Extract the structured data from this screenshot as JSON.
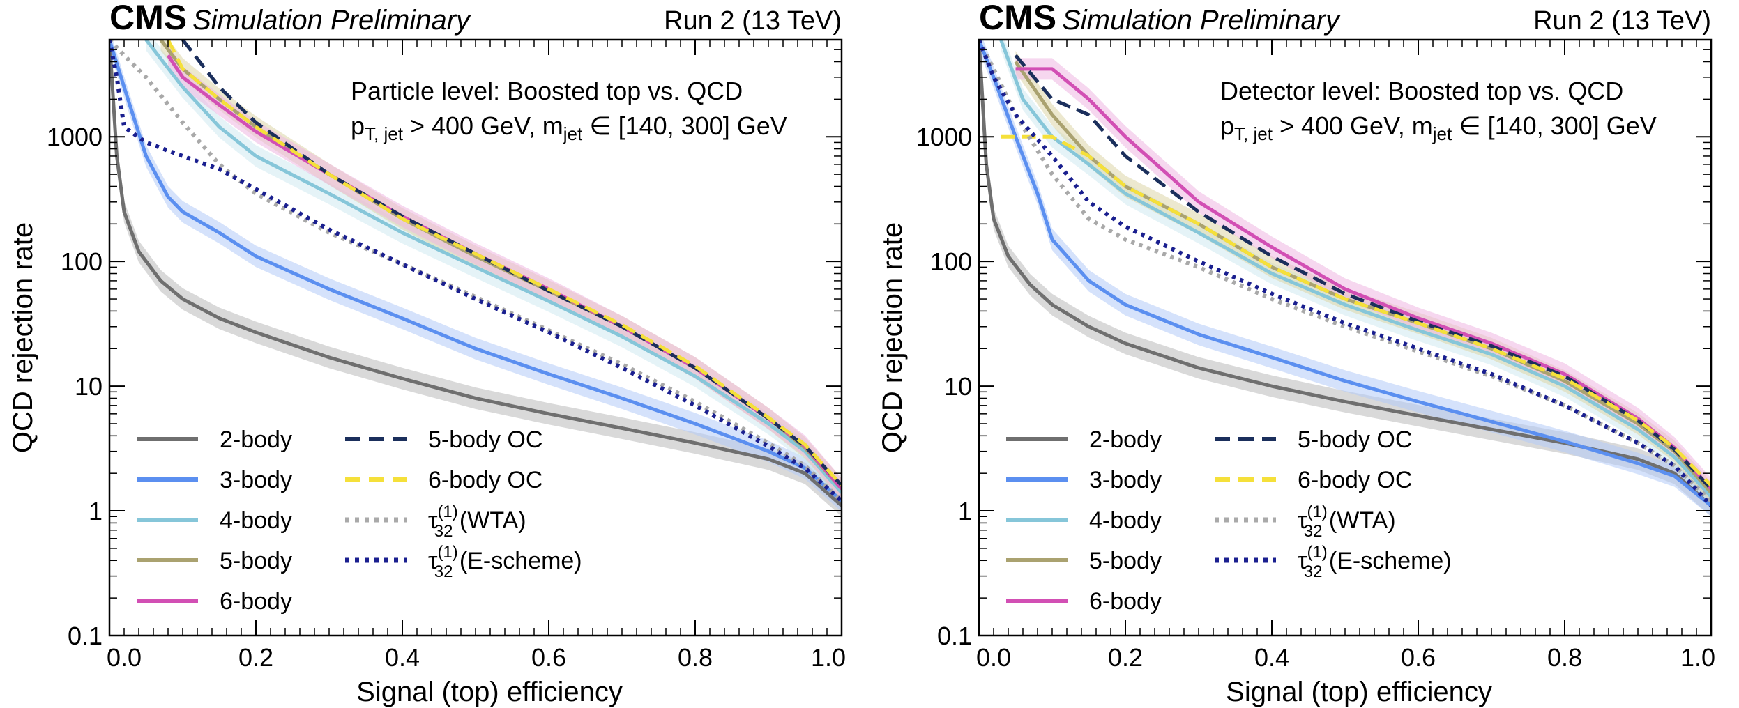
{
  "chart_data": [
    {
      "type": "line",
      "experiment": "CMS",
      "status": "Simulation Preliminary",
      "energy": "Run 2 (13 TeV)",
      "annotation_line1": "Particle level: Boosted top vs. QCD",
      "annotation_line2_pt": "p",
      "annotation_line2_pt_sub": "T, jet",
      "annotation_line2_rest": " > 400 GeV,  m",
      "annotation_line2_m_sub": "jet",
      "annotation_line2_end": " ∈ [140, 300] GeV",
      "xlabel": "Signal (top) efficiency",
      "ylabel": "QCD rejection rate",
      "xlim": [
        0.0,
        1.0
      ],
      "ylim": [
        0.1,
        6000
      ],
      "yscale": "log",
      "x_ticks": [
        "0.0",
        "0.2",
        "0.4",
        "0.6",
        "0.8",
        "1.0"
      ],
      "y_ticks": [
        "0.1",
        "1",
        "10",
        "100",
        "1000"
      ],
      "legend_col1": [
        {
          "label": "2-body",
          "color": "#6f6f6f",
          "style": "solid"
        },
        {
          "label": "3-body",
          "color": "#5b8ff0",
          "style": "solid"
        },
        {
          "label": "4-body",
          "color": "#86c6d9",
          "style": "solid"
        },
        {
          "label": "5-body",
          "color": "#aaa270",
          "style": "solid"
        },
        {
          "label": "6-body",
          "color": "#d24fb4",
          "style": "solid"
        }
      ],
      "legend_col2": [
        {
          "label": "5-body OC",
          "color": "#1b2f5c",
          "style": "dashed"
        },
        {
          "label": "6-body OC",
          "color": "#f5e03a",
          "style": "dashed"
        },
        {
          "label": "τ",
          "sup": "(1)",
          "sub": "32",
          "tail": " (WTA)",
          "color": "#a9a9a9",
          "style": "dotted"
        },
        {
          "label": "τ",
          "sup": "(1)",
          "sub": "32",
          "tail": " (E-scheme)",
          "color": "#1a1f8f",
          "style": "dotted"
        }
      ],
      "series": [
        {
          "name": "2-body",
          "color": "#6f6f6f",
          "band": "#b9b9b9",
          "x": [
            0.0,
            0.01,
            0.02,
            0.04,
            0.07,
            0.1,
            0.15,
            0.2,
            0.3,
            0.4,
            0.5,
            0.6,
            0.7,
            0.8,
            0.9,
            0.95,
            1.0
          ],
          "y": [
            6000,
            700,
            250,
            120,
            70,
            50,
            35,
            27,
            17,
            11.5,
            8,
            6,
            4.6,
            3.5,
            2.6,
            2.0,
            1.1
          ]
        },
        {
          "name": "3-body",
          "color": "#5b8ff0",
          "band": "#b3cbf7",
          "x": [
            0.0,
            0.02,
            0.05,
            0.08,
            0.1,
            0.15,
            0.2,
            0.3,
            0.4,
            0.5,
            0.6,
            0.7,
            0.8,
            0.9,
            0.95,
            1.0
          ],
          "y": [
            6000,
            2500,
            700,
            330,
            250,
            170,
            110,
            60,
            35,
            20,
            12.5,
            8,
            5,
            3,
            2.2,
            1.2
          ]
        },
        {
          "name": "4-body",
          "color": "#86c6d9",
          "band": "#cfe9f0",
          "x": [
            0.05,
            0.1,
            0.15,
            0.2,
            0.3,
            0.4,
            0.5,
            0.6,
            0.7,
            0.8,
            0.9,
            0.95,
            1.0
          ],
          "y": [
            6000,
            2500,
            1200,
            700,
            350,
            170,
            90,
            48,
            25,
            12,
            5,
            3,
            1.4
          ]
        },
        {
          "name": "5-body",
          "color": "#aaa270",
          "band": "#dcd6a8",
          "x": [
            0.07,
            0.1,
            0.15,
            0.2,
            0.3,
            0.4,
            0.5,
            0.6,
            0.7,
            0.8,
            0.9,
            0.95,
            1.0
          ],
          "y": [
            6000,
            3500,
            2000,
            1200,
            500,
            220,
            110,
            58,
            30,
            14,
            5.5,
            3.2,
            1.5
          ]
        },
        {
          "name": "6-body",
          "color": "#d24fb4",
          "band": "#efb6e2",
          "x": [
            0.08,
            0.1,
            0.15,
            0.2,
            0.3,
            0.4,
            0.5,
            0.6,
            0.7,
            0.8,
            0.9,
            0.95,
            1.0
          ],
          "y": [
            4500,
            3000,
            1800,
            1100,
            500,
            230,
            115,
            60,
            30,
            14,
            5.5,
            3.3,
            1.5
          ]
        },
        {
          "name": "5-body OC",
          "color": "#1b2f5c",
          "style": "dashed",
          "x": [
            0.1,
            0.15,
            0.2,
            0.3,
            0.4,
            0.5,
            0.6,
            0.7,
            0.8,
            0.9,
            0.95,
            1.0
          ],
          "y": [
            6000,
            2500,
            1300,
            500,
            230,
            115,
            58,
            30,
            14,
            5.5,
            3.3,
            1.6
          ]
        },
        {
          "name": "6-body OC",
          "color": "#f5e03a",
          "style": "dashed",
          "x": [
            0.08,
            0.1,
            0.15,
            0.2,
            0.3,
            0.4,
            0.5,
            0.6,
            0.7,
            0.8,
            0.9,
            0.95,
            1.0
          ],
          "y": [
            6000,
            3500,
            2000,
            1200,
            500,
            220,
            115,
            60,
            31,
            14.5,
            5.6,
            3.4,
            1.6
          ]
        },
        {
          "name": "τ32 (WTA)",
          "color": "#a9a9a9",
          "style": "dotted",
          "x": [
            0.0,
            0.02,
            0.05,
            0.1,
            0.15,
            0.2,
            0.3,
            0.4,
            0.5,
            0.6,
            0.7,
            0.8,
            0.9,
            0.95,
            1.0
          ],
          "y": [
            6000,
            4500,
            3000,
            1300,
            600,
            350,
            170,
            95,
            52,
            28,
            15,
            7.5,
            3.5,
            2.3,
            1.2
          ]
        },
        {
          "name": "τ32 (E-scheme)",
          "color": "#1a1f8f",
          "style": "dotted",
          "x": [
            0.0,
            0.01,
            0.02,
            0.05,
            0.1,
            0.15,
            0.2,
            0.3,
            0.4,
            0.5,
            0.6,
            0.7,
            0.8,
            0.9,
            0.95,
            1.0
          ],
          "y": [
            6000,
            3000,
            1200,
            900,
            700,
            550,
            380,
            180,
            95,
            50,
            27,
            14,
            7,
            3.3,
            2.2,
            1.2
          ]
        }
      ]
    },
    {
      "type": "line",
      "experiment": "CMS",
      "status": "Simulation Preliminary",
      "energy": "Run 2 (13 TeV)",
      "annotation_line1": "Detector level: Boosted top vs. QCD",
      "annotation_line2_pt": "p",
      "annotation_line2_pt_sub": "T, jet",
      "annotation_line2_rest": " > 400 GeV,  m",
      "annotation_line2_m_sub": "jet",
      "annotation_line2_end": " ∈ [140, 300] GeV",
      "xlabel": "Signal (top) efficiency",
      "ylabel": "QCD rejection rate",
      "xlim": [
        0.0,
        1.0
      ],
      "ylim": [
        0.1,
        6000
      ],
      "yscale": "log",
      "x_ticks": [
        "0.0",
        "0.2",
        "0.4",
        "0.6",
        "0.8",
        "1.0"
      ],
      "y_ticks": [
        "0.1",
        "1",
        "10",
        "100",
        "1000"
      ],
      "legend_col1": [
        {
          "label": "2-body",
          "color": "#6f6f6f",
          "style": "solid"
        },
        {
          "label": "3-body",
          "color": "#5b8ff0",
          "style": "solid"
        },
        {
          "label": "4-body",
          "color": "#86c6d9",
          "style": "solid"
        },
        {
          "label": "5-body",
          "color": "#aaa270",
          "style": "solid"
        },
        {
          "label": "6-body",
          "color": "#d24fb4",
          "style": "solid"
        }
      ],
      "legend_col2": [
        {
          "label": "5-body OC",
          "color": "#1b2f5c",
          "style": "dashed"
        },
        {
          "label": "6-body OC",
          "color": "#f5e03a",
          "style": "dashed"
        },
        {
          "label": "τ",
          "sup": "(1)",
          "sub": "32",
          "tail": " (WTA)",
          "color": "#a9a9a9",
          "style": "dotted"
        },
        {
          "label": "τ",
          "sup": "(1)",
          "sub": "32",
          "tail": " (E-scheme)",
          "color": "#1a1f8f",
          "style": "dotted"
        }
      ],
      "series": [
        {
          "name": "2-body",
          "color": "#6f6f6f",
          "band": "#b9b9b9",
          "x": [
            0.0,
            0.01,
            0.02,
            0.04,
            0.07,
            0.1,
            0.15,
            0.2,
            0.3,
            0.4,
            0.5,
            0.6,
            0.7,
            0.8,
            0.9,
            0.95,
            1.0
          ],
          "y": [
            6000,
            600,
            220,
            110,
            65,
            45,
            30,
            22,
            14,
            10,
            7.5,
            5.8,
            4.5,
            3.5,
            2.6,
            2.0,
            1.1
          ]
        },
        {
          "name": "3-body",
          "color": "#5b8ff0",
          "band": "#b3cbf7",
          "x": [
            0.0,
            0.02,
            0.05,
            0.08,
            0.1,
            0.15,
            0.2,
            0.3,
            0.4,
            0.5,
            0.6,
            0.7,
            0.8,
            0.9,
            0.95,
            1.0
          ],
          "y": [
            6000,
            3000,
            1000,
            350,
            150,
            70,
            45,
            26,
            17,
            11,
            7.5,
            5.2,
            3.6,
            2.4,
            1.9,
            1.1
          ]
        },
        {
          "name": "4-body",
          "color": "#86c6d9",
          "band": "#cfe9f0",
          "x": [
            0.03,
            0.06,
            0.1,
            0.15,
            0.2,
            0.3,
            0.4,
            0.5,
            0.6,
            0.7,
            0.8,
            0.9,
            0.95,
            1.0
          ],
          "y": [
            6000,
            2000,
            1000,
            600,
            350,
            170,
            80,
            45,
            28,
            18,
            10,
            4.5,
            2.7,
            1.3
          ]
        },
        {
          "name": "5-body",
          "color": "#aaa270",
          "band": "#dcd6a8",
          "x": [
            0.05,
            0.1,
            0.15,
            0.2,
            0.3,
            0.4,
            0.5,
            0.6,
            0.7,
            0.8,
            0.9,
            0.95,
            1.0
          ],
          "y": [
            4000,
            1500,
            700,
            400,
            200,
            90,
            50,
            32,
            20,
            11,
            5,
            3,
            1.4
          ]
        },
        {
          "name": "6-body",
          "color": "#d24fb4",
          "band": "#efb6e2",
          "x": [
            0.05,
            0.1,
            0.15,
            0.2,
            0.3,
            0.4,
            0.5,
            0.6,
            0.7,
            0.8,
            0.9,
            0.95,
            1.0
          ],
          "y": [
            3500,
            3500,
            2000,
            1000,
            300,
            130,
            60,
            35,
            22,
            12.5,
            5.5,
            3.2,
            1.5
          ]
        },
        {
          "name": "5-body OC",
          "color": "#1b2f5c",
          "style": "dashed",
          "x": [
            0.05,
            0.1,
            0.15,
            0.2,
            0.3,
            0.4,
            0.5,
            0.6,
            0.7,
            0.8,
            0.9,
            0.95,
            1.0
          ],
          "y": [
            4500,
            2000,
            1500,
            700,
            250,
            110,
            55,
            33,
            21,
            12,
            5.3,
            3.1,
            1.5
          ]
        },
        {
          "name": "6-body OC",
          "color": "#f5e03a",
          "style": "dashed",
          "x": [
            0.03,
            0.1,
            0.15,
            0.2,
            0.3,
            0.4,
            0.5,
            0.6,
            0.7,
            0.8,
            0.9,
            0.95,
            1.0
          ],
          "y": [
            1000,
            1000,
            700,
            400,
            200,
            90,
            50,
            32,
            20,
            11.5,
            5.3,
            3.2,
            1.6
          ]
        },
        {
          "name": "τ32 (WTA)",
          "color": "#a9a9a9",
          "style": "dotted",
          "x": [
            0.0,
            0.02,
            0.05,
            0.1,
            0.15,
            0.2,
            0.3,
            0.4,
            0.5,
            0.6,
            0.7,
            0.8,
            0.9,
            0.95,
            1.0
          ],
          "y": [
            6000,
            3500,
            1500,
            500,
            220,
            150,
            90,
            50,
            30,
            19,
            12,
            7,
            3.5,
            2.3,
            1.2
          ]
        },
        {
          "name": "τ32 (E-scheme)",
          "color": "#1a1f8f",
          "style": "dotted",
          "x": [
            0.0,
            0.02,
            0.05,
            0.1,
            0.15,
            0.2,
            0.3,
            0.4,
            0.5,
            0.6,
            0.7,
            0.8,
            0.9,
            0.95,
            1.0
          ],
          "y": [
            6000,
            3000,
            1500,
            700,
            300,
            190,
            100,
            55,
            32,
            20,
            12.5,
            7,
            3.5,
            2.3,
            1.1
          ]
        }
      ]
    }
  ]
}
